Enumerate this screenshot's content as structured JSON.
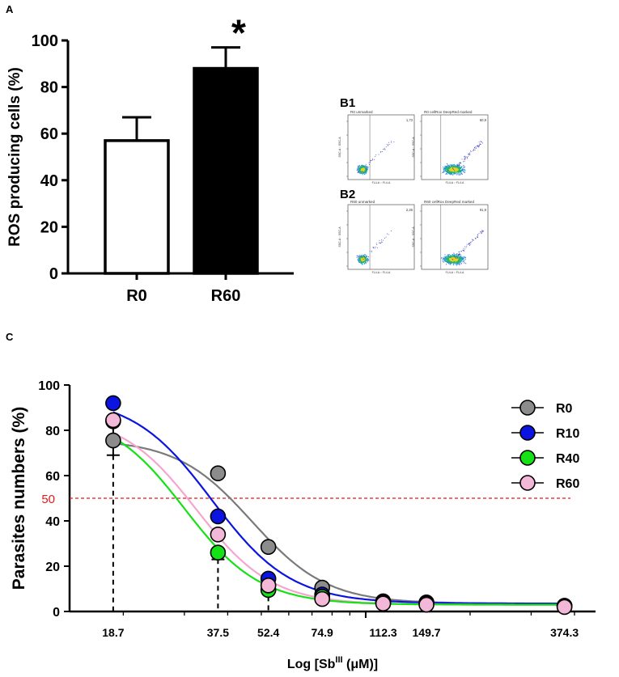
{
  "panel_labels": {
    "a": "A",
    "b1": "B1",
    "b2": "B2",
    "c": "C"
  },
  "colors": {
    "R0": "#8c8c8c",
    "R10": "#0b14e0",
    "R40": "#16e016",
    "R60": "#f3b7d8",
    "threshold": "#e41a1c",
    "r0_curve": "#7a7a7a",
    "r60_curve": "#f4a6cf"
  },
  "chart_data": [
    {
      "type": "bar",
      "panel": "A",
      "title": "",
      "categories": [
        "R0",
        "R60"
      ],
      "values": [
        57,
        88
      ],
      "error_plus": [
        10,
        9
      ],
      "bar_fill": [
        "white",
        "black"
      ],
      "significance": [
        "",
        "*"
      ],
      "xlabel": "",
      "ylabel": "ROS producing cells (%)",
      "ylim": [
        0,
        100
      ],
      "yticks": [
        0,
        20,
        40,
        60,
        80,
        100
      ]
    },
    {
      "type": "scatter",
      "panel": "C",
      "title": "",
      "xlabel_main": "Log [Sb",
      "xlabel_sup": "III",
      "xlabel_rest": " (μM)]",
      "ylabel": "Parasites numbers (%)",
      "xscale": "log",
      "xlim": [
        14,
        460
      ],
      "ylim": [
        0,
        100
      ],
      "yticks": [
        0,
        20,
        40,
        60,
        80,
        100
      ],
      "xticks": [
        18.7,
        37.5,
        52.4,
        74.9,
        112.3,
        149.7,
        374.3
      ],
      "xtick_labels": [
        "18.7",
        "37.5",
        "52.4",
        "74.9",
        "112.3",
        "149.7",
        "374.3"
      ],
      "threshold": {
        "value": 50,
        "label": "50"
      },
      "x": [
        18.7,
        37.5,
        52.4,
        74.9,
        112.3,
        149.7,
        374.3
      ],
      "legend": [
        "R0",
        "R10",
        "R40",
        "R60"
      ],
      "legend_position": "top-right",
      "series": [
        {
          "name": "R0",
          "values": [
            75.5,
            61,
            28.5,
            10.5,
            4.5,
            4,
            2.5
          ],
          "error": [
            6.5,
            0,
            0,
            0,
            0,
            0,
            0
          ],
          "ic50": 47,
          "top": 76,
          "bottom": 3.5,
          "hill": 4
        },
        {
          "name": "R10",
          "values": [
            92,
            42,
            14.5,
            7.5,
            4,
            3.5,
            2.5
          ],
          "error": [
            0,
            0,
            0,
            0,
            0,
            0,
            0
          ],
          "ic50": 36,
          "top": 95,
          "bottom": 3.5,
          "hill": 3.8
        },
        {
          "name": "R40",
          "values": [
            84,
            26,
            9.5,
            6.5,
            4,
            3.5,
            2.5
          ],
          "error": [
            0,
            3,
            1.5,
            0,
            0,
            0,
            0
          ],
          "ic50": 30,
          "top": 88,
          "bottom": 3,
          "hill": 4
        },
        {
          "name": "R60",
          "values": [
            84.5,
            34,
            11.5,
            5.5,
            3.5,
            3,
            2
          ],
          "error": [
            0,
            0,
            0,
            0,
            0,
            0,
            0
          ],
          "ic50": 32.5,
          "top": 87,
          "bottom": 3,
          "hill": 4
        }
      ],
      "dashed_drop_lines_at": [
        18.7,
        37.5,
        52.4
      ]
    }
  ],
  "flow_plots": [
    {
      "group": "B1",
      "title": "R0 unmarked",
      "value": "1,73",
      "xaxis": "FL4-A :: FL4-A",
      "yaxis": "SSC-A :: SSC-A"
    },
    {
      "group": "B1",
      "title": "R0 cellRox DeepRed marked",
      "value": "60,9",
      "xaxis": "FL4-A :: FL4-A",
      "yaxis": "SSC-A :: SSC-A"
    },
    {
      "group": "B2",
      "title": "R60 unmarked",
      "value": "2,26",
      "xaxis": "FL4-A :: FL4-A",
      "yaxis": "SSC-A :: SSC-A"
    },
    {
      "group": "B2",
      "title": "R60 cellRox DeepRed marked",
      "value": "91,9",
      "xaxis": "FL4-A :: FL4-A",
      "yaxis": "SSC-A :: SSC-A"
    }
  ]
}
